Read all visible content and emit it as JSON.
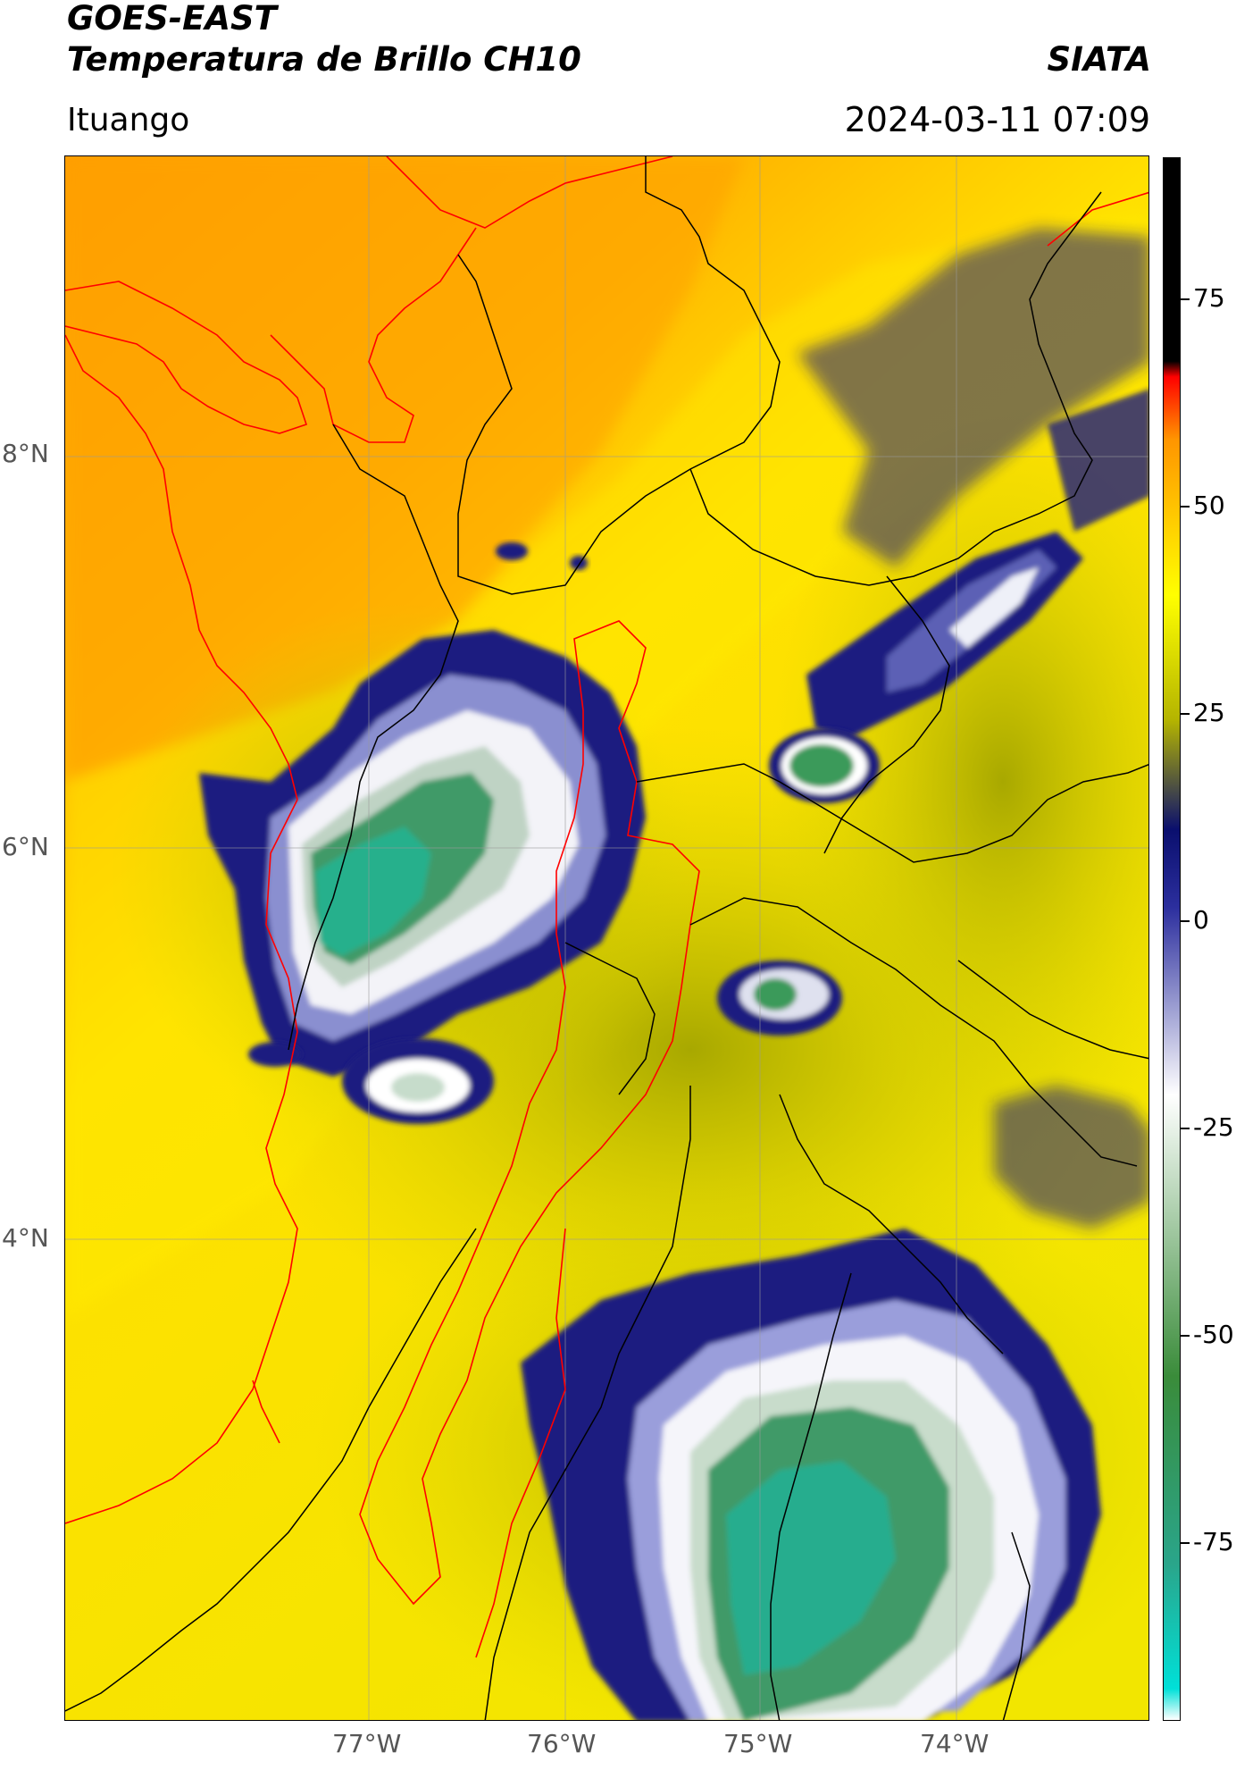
{
  "header": {
    "satellite": "GOES-EAST",
    "product": "Temperatura de Brillo CH10",
    "agency": "SIATA",
    "location": "Ituango",
    "datetime": "2024-03-11 07:09"
  },
  "axes": {
    "lat_labels": [
      "8°N",
      "6°N",
      "4°N"
    ],
    "lon_labels": [
      "77°W",
      "76°W",
      "75°W",
      "74°W"
    ]
  },
  "colorbar": {
    "tick_labels": [
      "75",
      "50",
      "25",
      "0",
      "-25",
      "-50",
      "-75"
    ],
    "stops": [
      "#ffffff",
      "#00e0d8",
      "#2aa58a",
      "#3a8c3a",
      "#ffffff",
      "#2c2f9e",
      "#0a0f6e",
      "#b4b400",
      "#ffff00",
      "#ff9500",
      "#ff0000",
      "#000000"
    ]
  },
  "map_colors": {
    "land_warm": "#ffa500",
    "land_mid": "#ffd000",
    "cloud_olive": "#b5b500",
    "cloud_deep_blue": "#1a1d80",
    "cloud_white": "#f2f2f8",
    "cloud_cold_green": "#2e9a60",
    "border_dept": "#ff0000",
    "border_muni": "#000000"
  }
}
